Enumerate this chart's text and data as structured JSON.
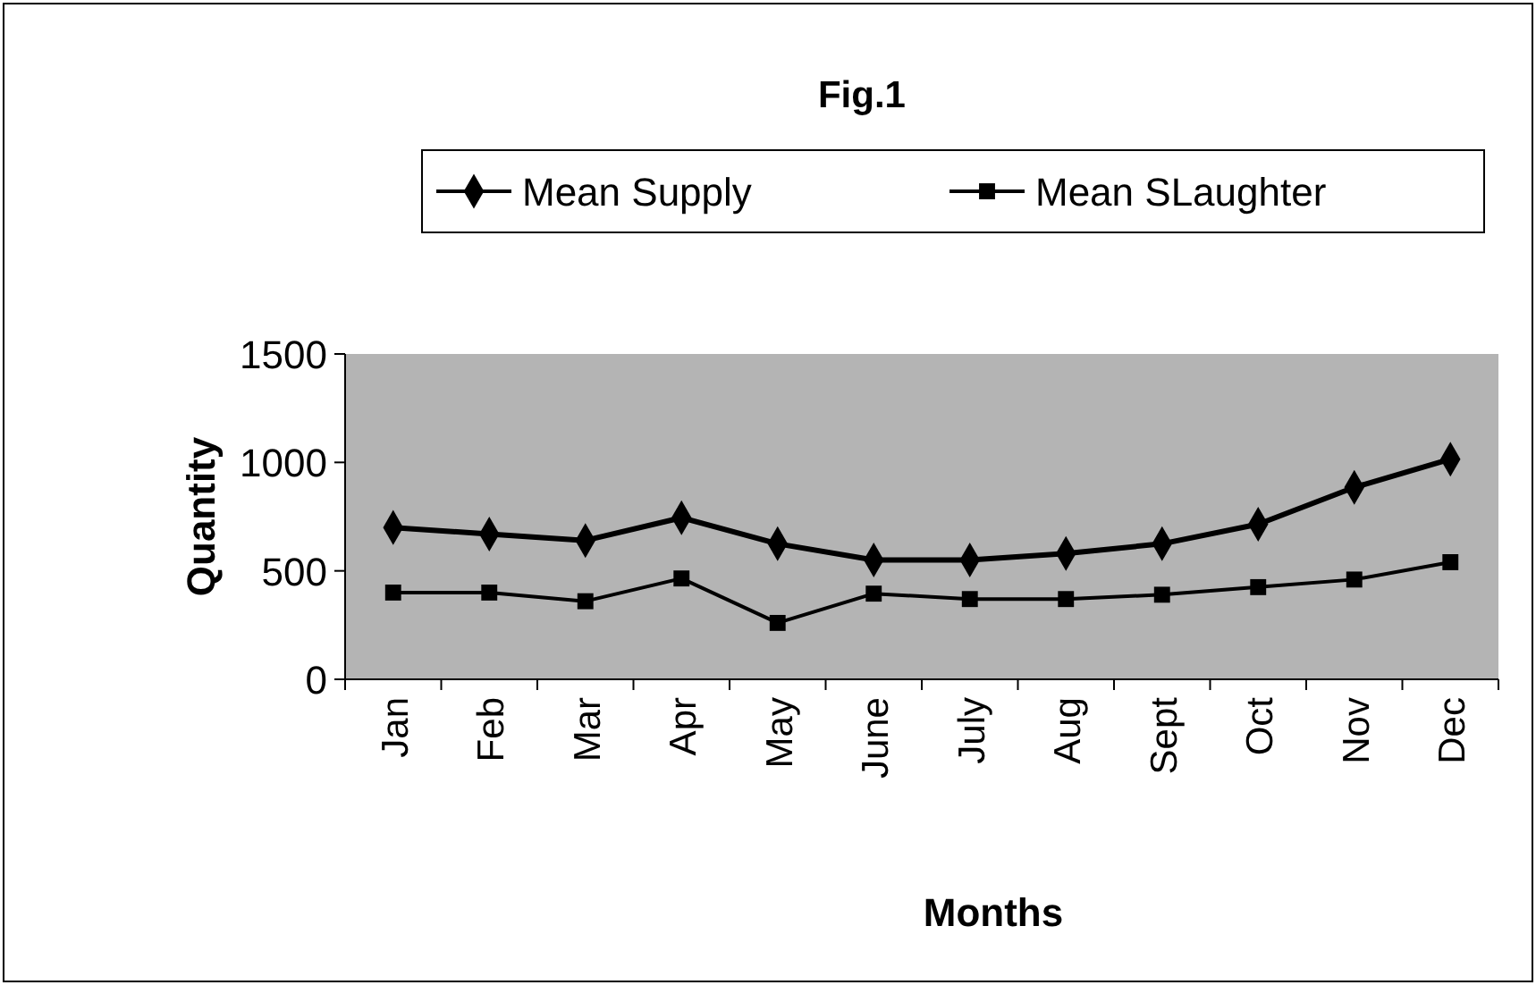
{
  "chart_data": {
    "type": "line",
    "title": "Fig.1",
    "xlabel": "Months",
    "ylabel": "Quantity",
    "categories": [
      "Jan",
      "Feb",
      "Mar",
      "Apr",
      "May",
      "June",
      "July",
      "Aug",
      "Sept",
      "Oct",
      "Nov",
      "Dec"
    ],
    "series": [
      {
        "name": "Mean Supply",
        "color": "#000000",
        "marker": "diamond",
        "values": [
          700,
          670,
          640,
          745,
          625,
          550,
          550,
          580,
          625,
          715,
          885,
          1015
        ]
      },
      {
        "name": "Mean SLaughter",
        "color": "#000000",
        "marker": "square",
        "values": [
          400,
          400,
          360,
          465,
          260,
          395,
          370,
          370,
          390,
          425,
          460,
          540
        ]
      }
    ],
    "ylim": [
      0,
      1500
    ],
    "yticks": [
      0,
      500,
      1000,
      1500
    ],
    "grid": false,
    "legend": "top"
  }
}
